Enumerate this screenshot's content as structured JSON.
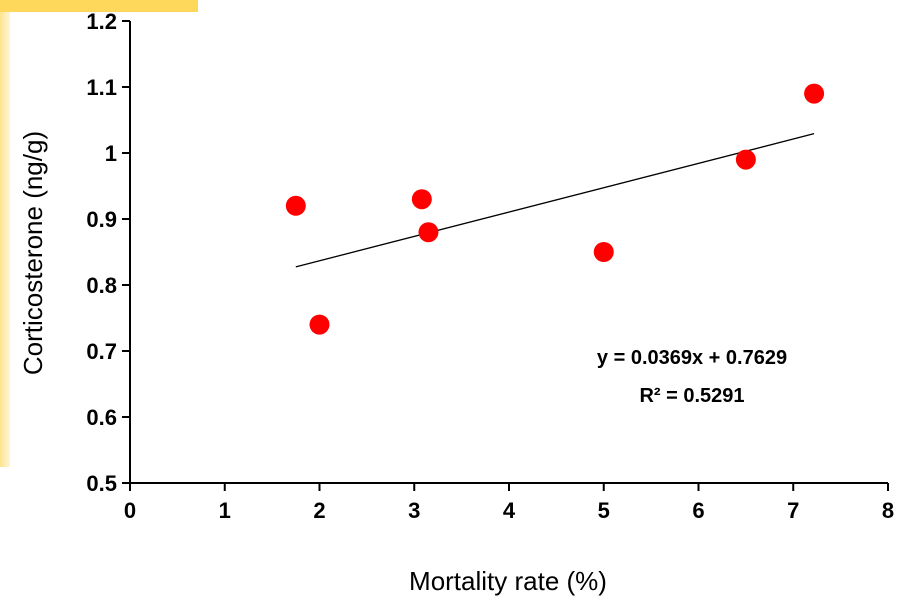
{
  "chart_data": {
    "type": "scatter",
    "xlabel": "Mortality rate (%)",
    "ylabel": "Corticosterone (ng/g)",
    "xlim": [
      0,
      8
    ],
    "ylim": [
      0.5,
      1.2
    ],
    "x_ticks": [
      0,
      1,
      2,
      3,
      4,
      5,
      6,
      7,
      8
    ],
    "y_ticks": [
      0.5,
      0.6,
      0.7,
      0.8,
      0.9,
      1.0,
      1.1,
      1.2
    ],
    "x_tick_labels": [
      "0",
      "1",
      "2",
      "3",
      "4",
      "5",
      "6",
      "7",
      "8"
    ],
    "y_tick_labels": [
      "0.5",
      "0.6",
      "0.7",
      "0.8",
      "0.9",
      "1",
      "1.1",
      "1.2"
    ],
    "grid": false,
    "marker_color": "#ff0000",
    "points": [
      {
        "x": 1.75,
        "y": 0.92
      },
      {
        "x": 2.0,
        "y": 0.74
      },
      {
        "x": 3.08,
        "y": 0.93
      },
      {
        "x": 3.15,
        "y": 0.88
      },
      {
        "x": 5.0,
        "y": 0.85
      },
      {
        "x": 6.5,
        "y": 0.99
      },
      {
        "x": 7.22,
        "y": 1.09
      }
    ],
    "trendline": {
      "slope": 0.0369,
      "intercept": 0.7629,
      "x_range": [
        1.75,
        7.22
      ],
      "equation": "y = 0.0369x + 0.7629",
      "r_squared": "R² = 0.5291"
    }
  }
}
